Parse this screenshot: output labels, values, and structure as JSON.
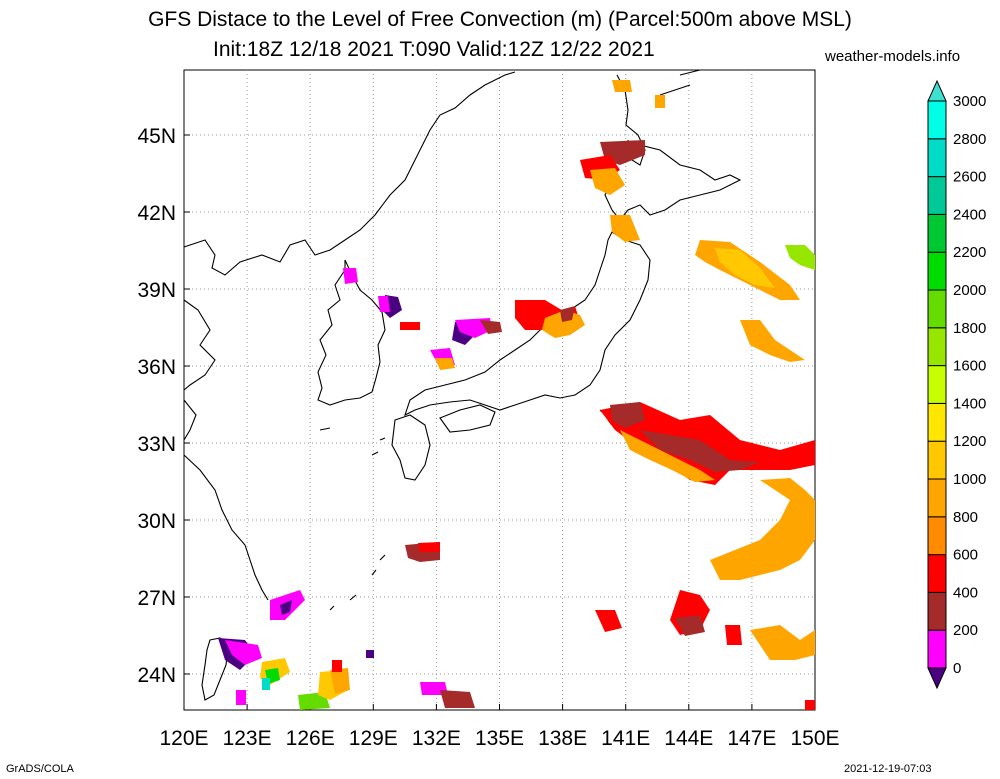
{
  "title": "GFS Distace to the Level of Free Convection (m) (Parcel:500m above MSL)",
  "subtitle": "Init:18Z 12/18 2021 T:090 Valid:12Z 12/22 2021",
  "credit": "weather-models.info",
  "footer_left": "GrADS/COLA",
  "footer_right": "2021-12-19-07:03",
  "lon_labels": [
    "120E",
    "123E",
    "126E",
    "129E",
    "132E",
    "135E",
    "138E",
    "141E",
    "144E",
    "147E",
    "150E"
  ],
  "lat_labels": [
    "45N",
    "42N",
    "39N",
    "36N",
    "33N",
    "30N",
    "27N",
    "24N"
  ],
  "colorbar": {
    "labels": [
      "0",
      "200",
      "400",
      "600",
      "800",
      "1000",
      "1200",
      "1400",
      "1600",
      "1800",
      "2000",
      "2200",
      "2400",
      "2600",
      "2800",
      "3000"
    ],
    "colors": [
      "#4b0082",
      "#ff00ff",
      "#a52a2a",
      "#ff0000",
      "#ff8c00",
      "#ffa500",
      "#ffc800",
      "#ffe600",
      "#c8ff00",
      "#96e600",
      "#64dc00",
      "#00dc00",
      "#00c832",
      "#00c896",
      "#00dcc8",
      "#00ffe6",
      "#40e0d0"
    ]
  }
}
